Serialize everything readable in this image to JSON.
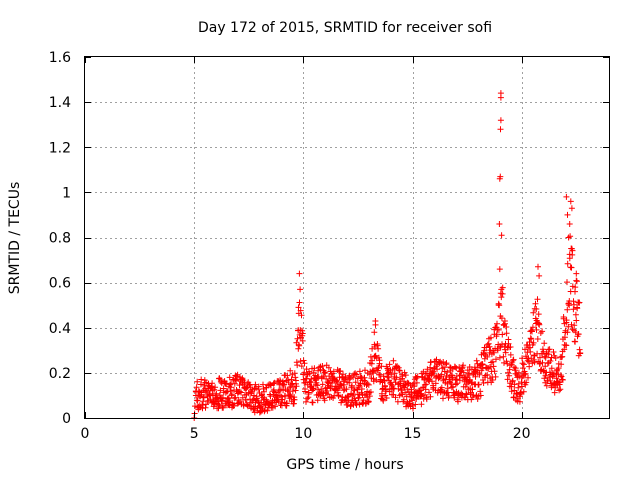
{
  "chart_data": {
    "type": "scatter",
    "title": "Day 172 of 2015, SRMTID for receiver sofi",
    "xlabel": "GPS time / hours",
    "ylabel": "SRMTID / TECUs",
    "xlim": [
      0,
      24
    ],
    "ylim": [
      0,
      1.6
    ],
    "xticks": [
      0,
      5,
      10,
      15,
      20
    ],
    "xtick_labels": [
      "0",
      "5",
      "10",
      "15",
      "20"
    ],
    "yticks": [
      0,
      0.2,
      0.4,
      0.6,
      0.8,
      1.0,
      1.2,
      1.4,
      1.6
    ],
    "ytick_labels": [
      "0",
      "0.2",
      "0.4",
      "0.6",
      "0.8",
      "1",
      "1.2",
      "1.4",
      "1.6"
    ],
    "grid": true,
    "marker": "plus",
    "color": "#ff0000",
    "series": [
      {
        "name": "SRMTID",
        "x_range": [
          4.95,
          22.7
        ],
        "profile": [
          {
            "x": 5.0,
            "y": 0.0
          },
          {
            "x": 5.1,
            "y": 0.1
          },
          {
            "x": 6.0,
            "y": 0.11
          },
          {
            "x": 7.0,
            "y": 0.12
          },
          {
            "x": 8.0,
            "y": 0.08
          },
          {
            "x": 9.0,
            "y": 0.12
          },
          {
            "x": 9.6,
            "y": 0.14
          },
          {
            "x": 9.85,
            "y": 0.42
          },
          {
            "x": 10.1,
            "y": 0.14
          },
          {
            "x": 11.0,
            "y": 0.16
          },
          {
            "x": 12.0,
            "y": 0.12
          },
          {
            "x": 13.0,
            "y": 0.14
          },
          {
            "x": 13.3,
            "y": 0.3
          },
          {
            "x": 13.6,
            "y": 0.15
          },
          {
            "x": 14.0,
            "y": 0.18
          },
          {
            "x": 15.0,
            "y": 0.1
          },
          {
            "x": 16.0,
            "y": 0.18
          },
          {
            "x": 17.0,
            "y": 0.15
          },
          {
            "x": 18.0,
            "y": 0.17
          },
          {
            "x": 18.8,
            "y": 0.3
          },
          {
            "x": 19.1,
            "y": 0.45
          },
          {
            "x": 19.4,
            "y": 0.25
          },
          {
            "x": 19.8,
            "y": 0.12
          },
          {
            "x": 20.3,
            "y": 0.25
          },
          {
            "x": 20.7,
            "y": 0.4
          },
          {
            "x": 21.2,
            "y": 0.22
          },
          {
            "x": 21.8,
            "y": 0.18
          },
          {
            "x": 22.2,
            "y": 0.65
          },
          {
            "x": 22.7,
            "y": 0.35
          }
        ],
        "peaks": [
          {
            "x": 9.82,
            "y": 0.64
          },
          {
            "x": 9.85,
            "y": 0.57
          },
          {
            "x": 9.78,
            "y": 0.49
          },
          {
            "x": 13.3,
            "y": 0.43
          },
          {
            "x": 13.25,
            "y": 0.38
          },
          {
            "x": 19.05,
            "y": 1.44
          },
          {
            "x": 19.05,
            "y": 1.42
          },
          {
            "x": 19.05,
            "y": 1.32
          },
          {
            "x": 19.03,
            "y": 1.28
          },
          {
            "x": 19.02,
            "y": 1.07
          },
          {
            "x": 19.0,
            "y": 1.06
          },
          {
            "x": 18.98,
            "y": 0.86
          },
          {
            "x": 19.08,
            "y": 0.81
          },
          {
            "x": 19.0,
            "y": 0.66
          },
          {
            "x": 20.75,
            "y": 0.67
          },
          {
            "x": 20.8,
            "y": 0.63
          },
          {
            "x": 22.05,
            "y": 0.98
          },
          {
            "x": 22.25,
            "y": 0.96
          },
          {
            "x": 22.3,
            "y": 0.93
          },
          {
            "x": 22.1,
            "y": 0.9
          },
          {
            "x": 22.2,
            "y": 0.86
          },
          {
            "x": 22.15,
            "y": 0.8
          },
          {
            "x": 22.3,
            "y": 0.75
          },
          {
            "x": 22.5,
            "y": 0.64
          },
          {
            "x": 22.45,
            "y": 0.58
          }
        ]
      }
    ]
  }
}
